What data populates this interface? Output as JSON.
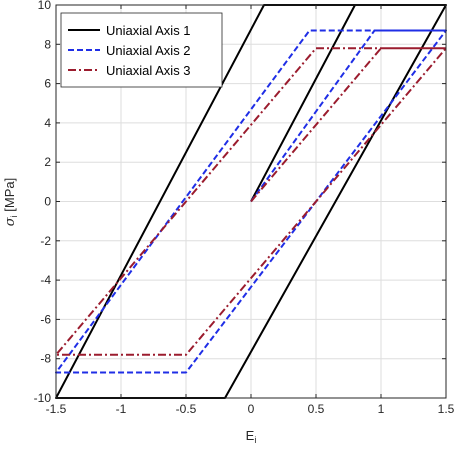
{
  "chart_data": {
    "type": "line",
    "title": "",
    "xlabel": "E",
    "xlabel_sub": "i",
    "ylabel": "σ",
    "ylabel_sub": "i",
    "ylabel_unit": " [MPa]",
    "xlim": [
      -1.5,
      1.5
    ],
    "ylim": [
      -10,
      10
    ],
    "x_ticks": [
      -1.5,
      -1,
      -0.5,
      0,
      0.5,
      1,
      1.5
    ],
    "x_tick_labels": [
      "-1.5",
      "-1",
      "-0.5",
      "0",
      "0.5",
      "1",
      "1.5"
    ],
    "y_ticks": [
      -10,
      -8,
      -6,
      -4,
      -2,
      0,
      2,
      4,
      6,
      8,
      10
    ],
    "y_tick_labels": [
      "-10",
      "-8",
      "-6",
      "-4",
      "-2",
      "0",
      "2",
      "4",
      "6",
      "8",
      "10"
    ],
    "grid": true,
    "legend_position": "top-left",
    "series": [
      {
        "name": "Uniaxial Axis 1",
        "color": "#000000",
        "dash": "solid",
        "x": [
          0,
          0.8,
          1.5,
          -0.2,
          -1.5,
          0.1,
          1.5
        ],
        "y": [
          0,
          10,
          10,
          -10,
          -10,
          10,
          10
        ]
      },
      {
        "name": "Uniaxial Axis 2",
        "color": "#1f2ee6",
        "dash": "dashed",
        "x": [
          0,
          0.95,
          1.5,
          -0.5,
          -1.5,
          0.45,
          1.5
        ],
        "y": [
          0,
          8.7,
          8.7,
          -8.7,
          -8.7,
          8.7,
          8.7
        ]
      },
      {
        "name": "Uniaxial Axis 3",
        "color": "#9b1c2e",
        "dash": "dashdot",
        "x": [
          0,
          1.0,
          1.5,
          -0.5,
          -1.5,
          0.5,
          1.5
        ],
        "y": [
          0,
          7.8,
          7.8,
          -7.8,
          -7.8,
          7.8,
          7.8
        ]
      }
    ]
  }
}
